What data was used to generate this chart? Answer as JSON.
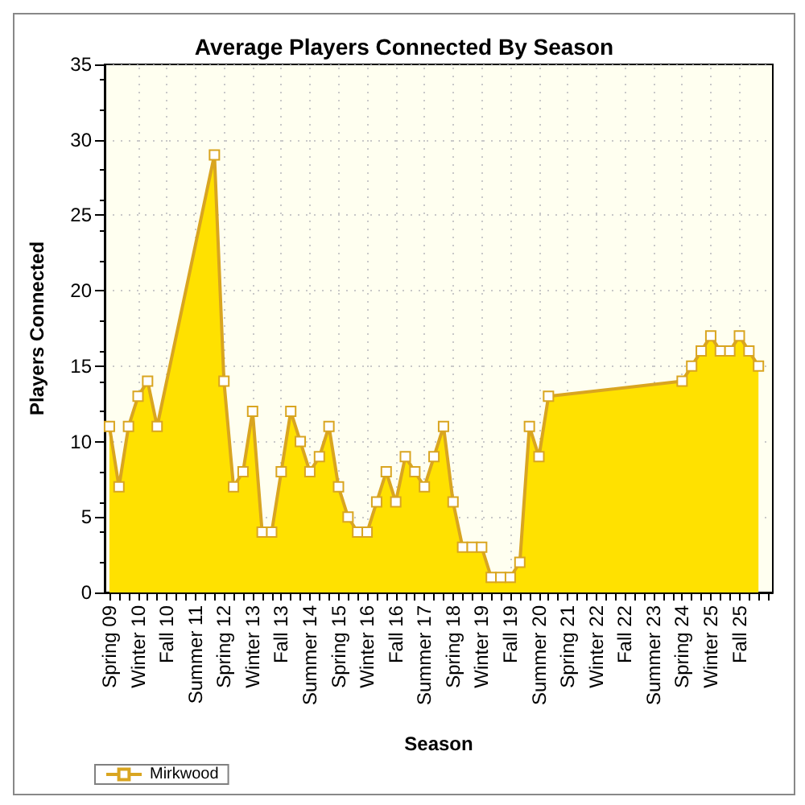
{
  "chart_data": {
    "type": "area",
    "title": "Average Players Connected By Season",
    "xlabel": "Season",
    "ylabel": "Players Connected",
    "categories": [
      "Spring 09",
      null,
      null,
      "Winter 10",
      null,
      null,
      "Fall 10",
      null,
      null,
      "Summer 11",
      null,
      null,
      "Spring 12",
      null,
      null,
      "Winter 13",
      null,
      null,
      "Fall 13",
      null,
      null,
      "Summer 14",
      null,
      null,
      "Spring 15",
      null,
      null,
      "Winter 16",
      null,
      null,
      "Fall 16",
      null,
      null,
      "Summer 17",
      null,
      null,
      "Spring 18",
      null,
      null,
      "Winter 19",
      null,
      null,
      "Fall 19",
      null,
      null,
      "Summer 20",
      null,
      null,
      "Spring 21",
      null,
      null,
      "Winter 22",
      null,
      null,
      "Fall 22",
      null,
      null,
      "Summer 23",
      null,
      null,
      "Spring 24",
      null,
      null,
      "Winter 25",
      null,
      null,
      "Fall 25",
      null,
      null,
      null
    ],
    "series": [
      {
        "name": "Mirkwood",
        "color": "#ffe100",
        "values": [
          11,
          7,
          11,
          13,
          14,
          11,
          null,
          null,
          null,
          null,
          null,
          29,
          14,
          7,
          8,
          12,
          4,
          4,
          8,
          12,
          10,
          8,
          9,
          11,
          7,
          5,
          4,
          4,
          6,
          8,
          6,
          9,
          8,
          7,
          9,
          11,
          6,
          3,
          3,
          3,
          1,
          1,
          1,
          2,
          11,
          9,
          13,
          null,
          null,
          null,
          null,
          null,
          null,
          null,
          null,
          null,
          null,
          null,
          null,
          null,
          14,
          15,
          16,
          17,
          16,
          16,
          17,
          16,
          15,
          null
        ]
      }
    ],
    "ylim": [
      0,
      35
    ],
    "yticks": [
      0,
      5,
      10,
      15,
      20,
      25,
      30,
      35
    ],
    "grid": true,
    "legend": "bottom left",
    "marker": "square"
  }
}
